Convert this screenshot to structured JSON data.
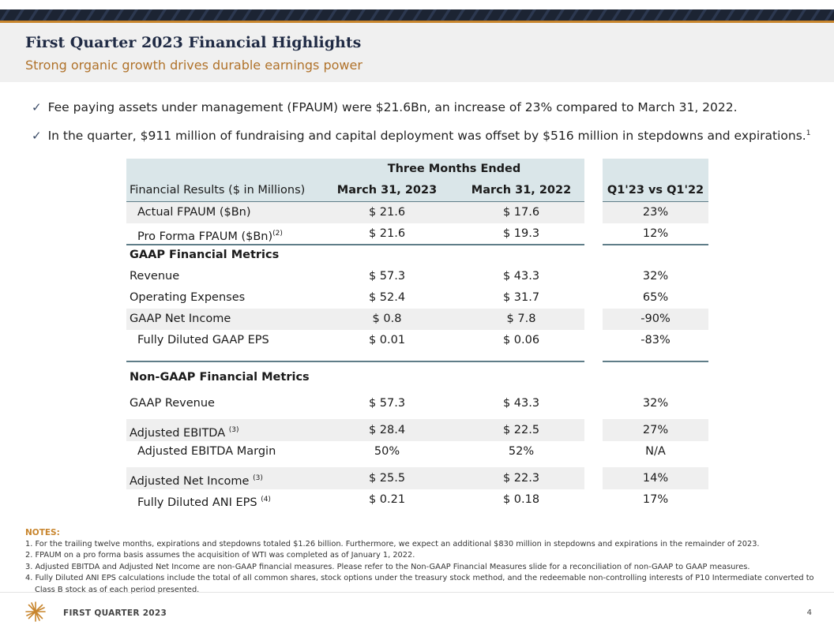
{
  "header": {
    "title": "First Quarter 2023 Financial Highlights",
    "subtitle": "Strong organic growth drives durable earnings power"
  },
  "bullets": [
    {
      "text": "Fee paying assets under management (FPAUM) were $21.6Bn, an increase of 23% compared to March 31, 2022.",
      "sup": ""
    },
    {
      "text": "In the quarter, $911 million of fundraising and capital deployment was offset by $516 million in stepdowns and expirations.",
      "sup": "1"
    }
  ],
  "table": {
    "period_header": "Three Months Ended",
    "col_label": "Financial Results ($ in Millions)",
    "col1": "March 31, 2023",
    "col2": "March 31, 2022",
    "col3": "Q1'23 vs Q1'22",
    "rows": [
      {
        "label": "Actual FPAUM ($Bn)",
        "sup": "",
        "v1": "$ 21.6",
        "v2": "$ 17.6",
        "v3": "23%"
      },
      {
        "label": "Pro Forma FPAUM ($Bn)",
        "sup": "(2)",
        "v1": "$ 21.6",
        "v2": "$ 19.3",
        "v3": "12%"
      },
      {
        "label": "GAAP Financial Metrics"
      },
      {
        "label": "Revenue",
        "v1": "$ 57.3",
        "v2": "$ 43.3",
        "v3": "32%"
      },
      {
        "label": "Operating Expenses",
        "v1": "$ 52.4",
        "v2": "$ 31.7",
        "v3": "65%"
      },
      {
        "label": "GAAP Net Income",
        "v1": "$ 0.8",
        "v2": "$ 7.8",
        "v3": "-90%"
      },
      {
        "label": "Fully Diluted GAAP EPS",
        "v1": "$ 0.01",
        "v2": "$ 0.06",
        "v3": "-83%"
      },
      {
        "label": "Non-GAAP Financial Metrics"
      },
      {
        "label": "GAAP Revenue",
        "v1": "$ 57.3",
        "v2": "$ 43.3",
        "v3": "32%"
      },
      {
        "label": "Adjusted EBITDA",
        "sup": "(3)",
        "v1": "$ 28.4",
        "v2": "$ 22.5",
        "v3": "27%"
      },
      {
        "label": "Adjusted EBITDA Margin",
        "v1": "50%",
        "v2": "52%",
        "v3": "N/A"
      },
      {
        "label": "Adjusted Net Income",
        "sup": "(3)",
        "v1": "$ 25.5",
        "v2": "$ 22.3",
        "v3": "14%"
      },
      {
        "label": "Fully Diluted ANI EPS",
        "sup": "(4)",
        "v1": "$ 0.21",
        "v2": "$ 0.18",
        "v3": "17%"
      }
    ]
  },
  "notes": {
    "heading": "NOTES:",
    "items": [
      "1. For the trailing twelve months, expirations and stepdowns totaled $1.26 billion. Furthermore, we expect an additional $830 million in stepdowns and expirations in the remainder of 2023.",
      "2. FPAUM on a pro forma basis assumes the acquisition of WTI was completed as of January 1, 2022.",
      "3. Adjusted EBITDA and Adjusted Net Income are non-GAAP financial measures. Please refer to the Non-GAAP Financial Measures slide for a reconciliation of non-GAAP to GAAP measures.",
      "4. Fully Diluted ANI EPS calculations include the total of all common shares, stock options under the treasury stock method, and the redeemable non-controlling interests of P10 Intermediate converted to Class B stock as of each period presented."
    ]
  },
  "footer": {
    "label": "FIRST QUARTER 2023",
    "page": "4",
    "logo_icon": "sunburst-logo-icon"
  },
  "colors": {
    "navy": "#1f2a44",
    "gold": "#c8852d",
    "band_gray": "#efefef",
    "band_blue": "#dae6e9"
  }
}
